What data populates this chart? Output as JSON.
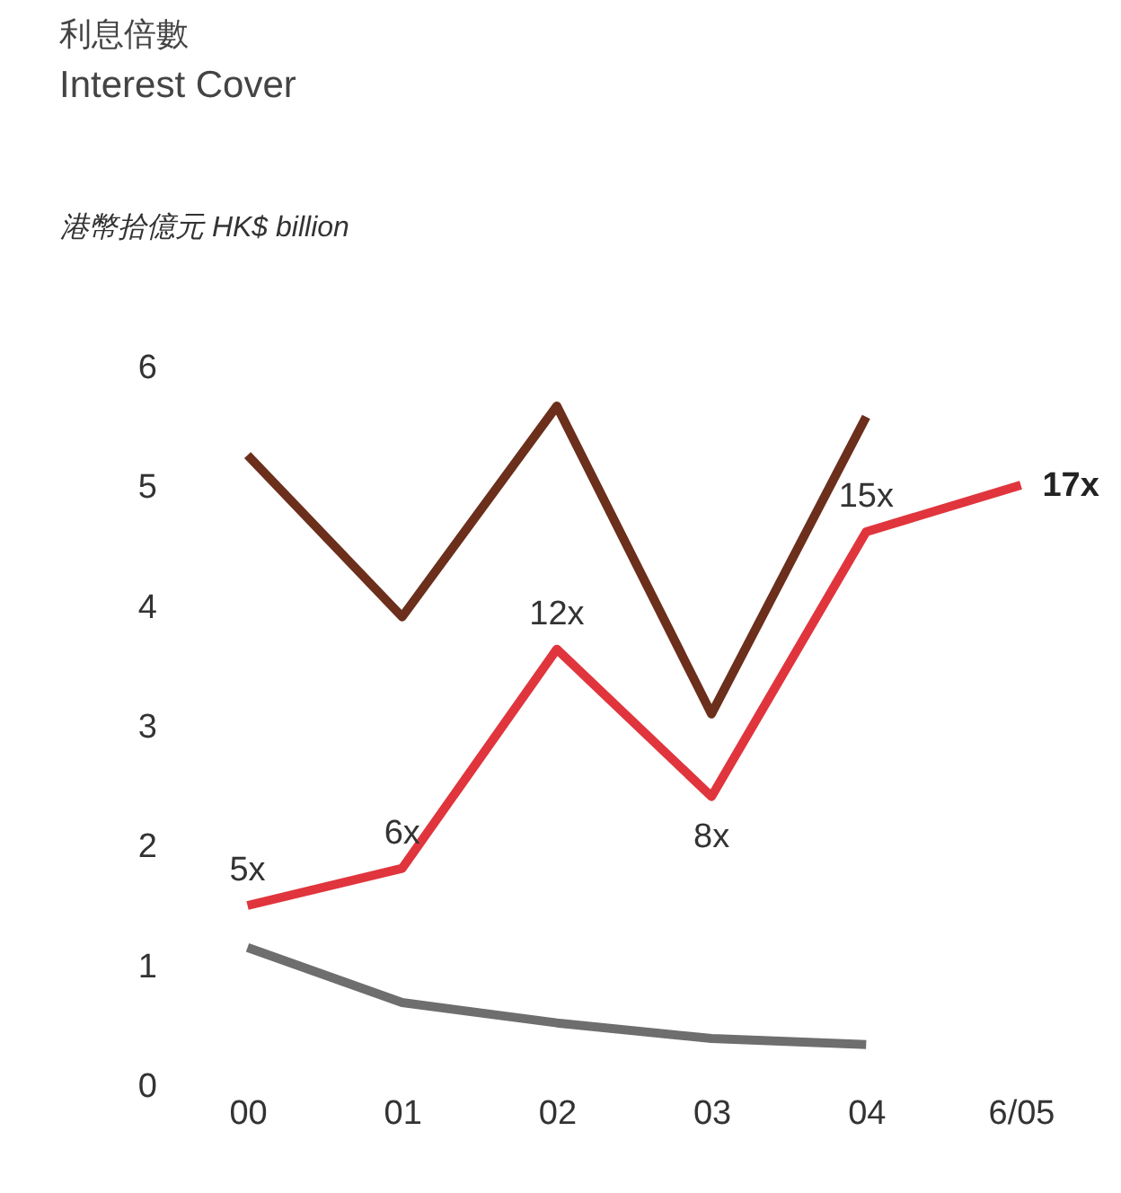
{
  "chart_data": {
    "type": "line",
    "title": "利息倍數",
    "subtitle": "Interest Cover",
    "ylabel": "港幣拾億元 HK$ billion",
    "categories": [
      "00",
      "01",
      "02",
      "03",
      "04",
      "6/05"
    ],
    "series": [
      {
        "color": "#6b2f1c",
        "values": [
          5.26,
          3.91,
          5.67,
          3.1,
          5.58,
          null
        ]
      },
      {
        "color": "#e0353d",
        "values": [
          1.5,
          1.81,
          3.64,
          2.41,
          4.62,
          5.01
        ]
      },
      {
        "color": "#6e6e6e",
        "values": [
          1.15,
          0.69,
          0.52,
          0.39,
          0.34,
          null
        ]
      }
    ],
    "annotations": [
      {
        "text": "5x",
        "x": "00",
        "y": 1.5
      },
      {
        "text": "6x",
        "x": "01",
        "y": 1.81
      },
      {
        "text": "12x",
        "x": "02",
        "y": 3.64
      },
      {
        "text": "8x",
        "x": "03",
        "y": 2.41
      },
      {
        "text": "15x",
        "x": "04",
        "y": 4.62
      },
      {
        "text": "17x",
        "x": "6/05",
        "y": 5.01
      }
    ],
    "ylim": [
      0,
      6
    ],
    "yticks": [
      0,
      1,
      2,
      3,
      4,
      5,
      6
    ],
    "grid": false,
    "legend": false,
    "marker": "none",
    "line_style": "solid"
  }
}
